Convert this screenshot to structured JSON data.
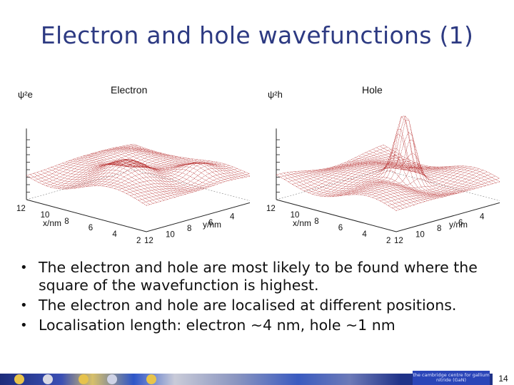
{
  "slide": {
    "title": "Electron and hole wavefunctions (1)",
    "page_number": "14"
  },
  "plots": [
    {
      "id": "electron",
      "title": "Electron",
      "z_label": "ψ²e",
      "x_axis_label": "x/nm",
      "y_axis_label": "y/nm",
      "x_ticks": [
        "12",
        "10",
        "8",
        "6",
        "4",
        "2"
      ],
      "y_ticks": [
        "12",
        "10",
        "8",
        "6",
        "4",
        "2"
      ],
      "surface_color": "#b22222"
    },
    {
      "id": "hole",
      "title": "Hole",
      "z_label": "ψ²h",
      "x_axis_label": "x/nm",
      "y_axis_label": "y/nm",
      "x_ticks": [
        "12",
        "10",
        "8",
        "6",
        "4",
        "2"
      ],
      "y_ticks": [
        "12",
        "10",
        "8",
        "6",
        "4",
        "2"
      ],
      "surface_color": "#b22222"
    }
  ],
  "bullets": [
    "The electron and hole are most likely to be found where the square of the wavefunction is highest.",
    "The electron and hole are localised at different positions.",
    "Localisation length: electron ~4 nm, hole ~1 nm"
  ],
  "footer": {
    "logo_text": "the cambridge centre for gallium nitride (GaN)"
  }
}
